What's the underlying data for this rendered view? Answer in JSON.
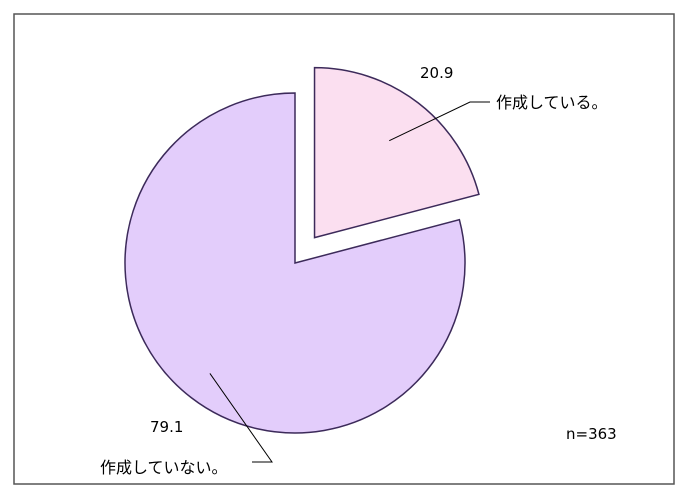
{
  "chart_data": {
    "type": "pie",
    "slices": [
      {
        "label": "作成している。",
        "value": 20.9,
        "value_label": "20.9",
        "color": "#fbdff0",
        "exploded": true
      },
      {
        "label": "作成していない。",
        "value": 79.1,
        "value_label": "79.1",
        "color": "#e3cdfb",
        "exploded": false
      }
    ],
    "annotation": "n=363",
    "stroke_color": "#3c2a5a"
  }
}
